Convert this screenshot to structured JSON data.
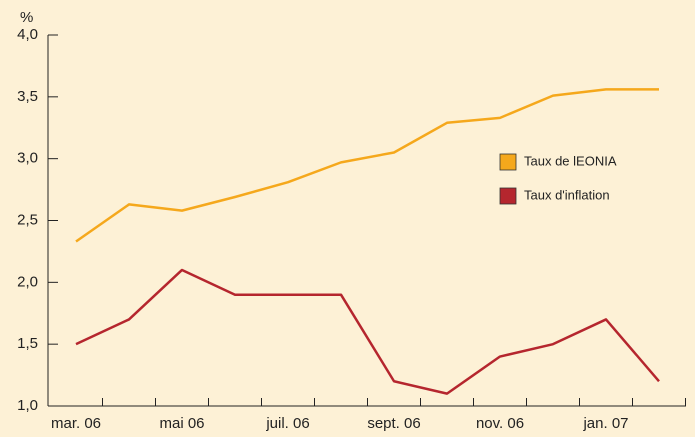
{
  "chart_data": {
    "type": "line",
    "y_unit": "%",
    "categories": [
      "mar. 06",
      null,
      "mai 06",
      null,
      "juil. 06",
      null,
      "sept. 06",
      null,
      "nov. 06",
      null,
      "jan. 07",
      null
    ],
    "series": [
      {
        "name": "Taux de lEONIA",
        "color": "#f5a81c",
        "values": [
          2.33,
          2.63,
          2.58,
          2.69,
          2.81,
          2.97,
          3.05,
          3.29,
          3.33,
          3.51,
          3.56,
          3.56
        ]
      },
      {
        "name": "Taux d'inflation",
        "color": "#b5262e",
        "values": [
          1.5,
          1.7,
          2.1,
          1.9,
          1.9,
          1.9,
          1.2,
          1.1,
          1.4,
          1.5,
          1.7,
          1.2
        ]
      }
    ],
    "ylim": [
      1.0,
      4.0
    ],
    "yticks": [
      {
        "value": 1.0,
        "label": "1,0"
      },
      {
        "value": 1.5,
        "label": "1,5"
      },
      {
        "value": 2.0,
        "label": "2,0"
      },
      {
        "value": 2.5,
        "label": "2,5"
      },
      {
        "value": 3.0,
        "label": "3,0"
      },
      {
        "value": 3.5,
        "label": "3,5"
      },
      {
        "value": 4.0,
        "label": "4,0"
      }
    ],
    "grid": false
  }
}
